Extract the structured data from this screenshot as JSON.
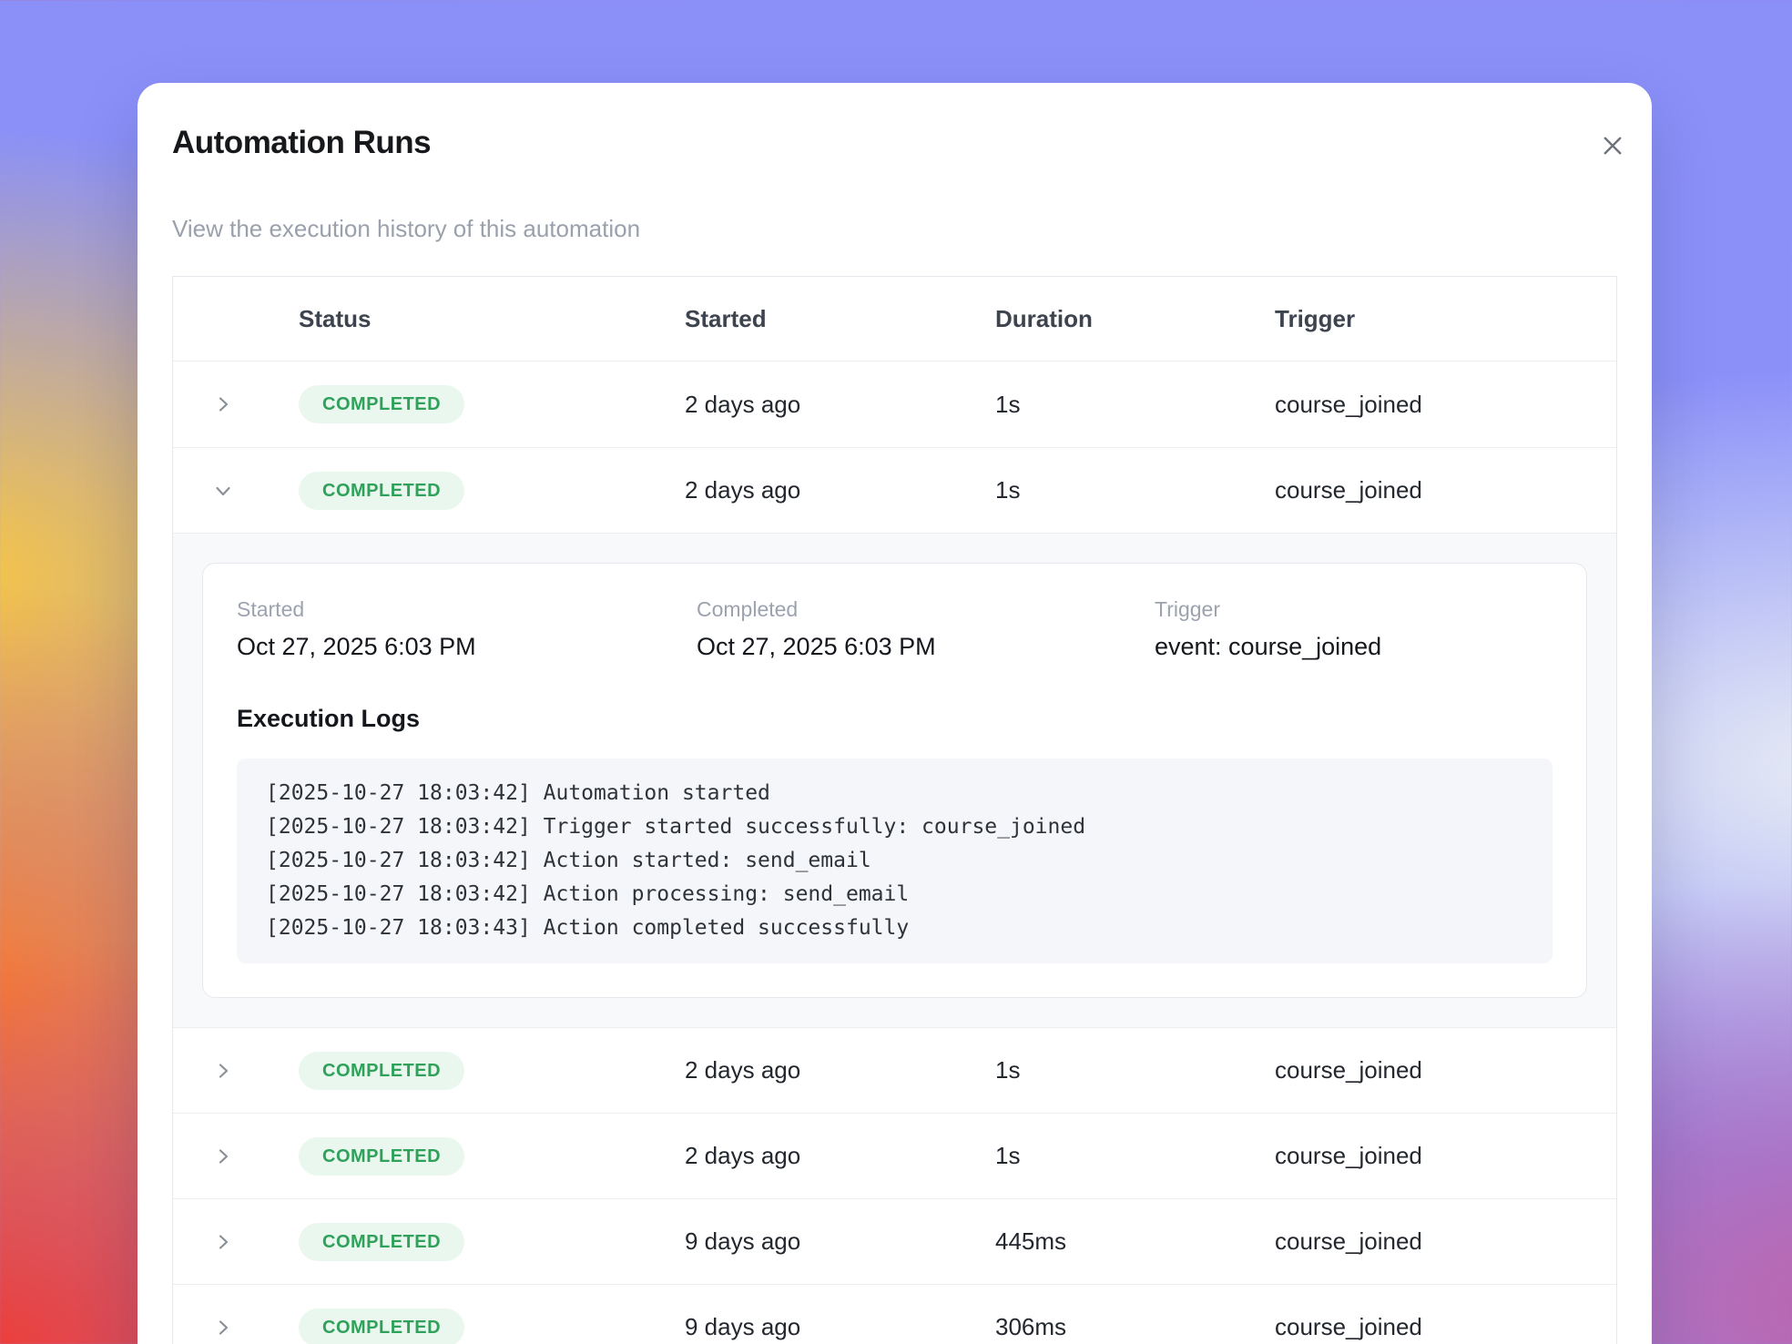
{
  "modal": {
    "title": "Automation Runs",
    "subtitle": "View the execution history of this automation"
  },
  "icons": {
    "close": "x-mark",
    "collapsed": "chevron-right",
    "expanded": "chevron-down"
  },
  "table": {
    "headers": {
      "status": "Status",
      "started": "Started",
      "duration": "Duration",
      "trigger": "Trigger"
    },
    "rows": [
      {
        "status": "COMPLETED",
        "started": "2 days ago",
        "duration": "1s",
        "trigger": "course_joined",
        "expanded": false
      },
      {
        "status": "COMPLETED",
        "started": "2 days ago",
        "duration": "1s",
        "trigger": "course_joined",
        "expanded": true
      },
      {
        "status": "COMPLETED",
        "started": "2 days ago",
        "duration": "1s",
        "trigger": "course_joined",
        "expanded": false
      },
      {
        "status": "COMPLETED",
        "started": "2 days ago",
        "duration": "1s",
        "trigger": "course_joined",
        "expanded": false
      },
      {
        "status": "COMPLETED",
        "started": "9 days ago",
        "duration": "445ms",
        "trigger": "course_joined",
        "expanded": false
      },
      {
        "status": "COMPLETED",
        "started": "9 days ago",
        "duration": "306ms",
        "trigger": "course_joined",
        "expanded": false
      }
    ]
  },
  "details": {
    "started_label": "Started",
    "started_value": "Oct 27, 2025 6:03 PM",
    "completed_label": "Completed",
    "completed_value": "Oct 27, 2025 6:03 PM",
    "trigger_label": "Trigger",
    "trigger_value": "event: course_joined",
    "logs_title": "Execution Logs",
    "logs": [
      "[2025-10-27 18:03:42] Automation started",
      "[2025-10-27 18:03:42] Trigger started successfully: course_joined",
      "[2025-10-27 18:03:42] Action started: send_email",
      "[2025-10-27 18:03:42] Action processing: send_email",
      "[2025-10-27 18:03:43] Action completed successfully"
    ]
  },
  "colors": {
    "badge_bg": "#e9f7ee",
    "badge_text": "#2fa15a",
    "background_top": "#8a90f8"
  }
}
